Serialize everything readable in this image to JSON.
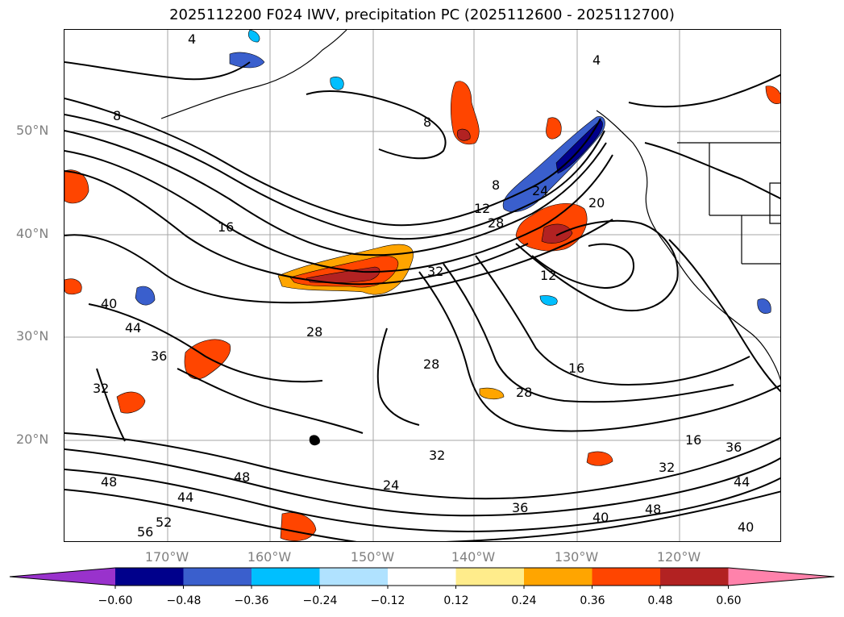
{
  "title": "2025112200 F024 IWV, precipitation PC (2025112600 - 2025112700)",
  "lat_labels": [
    {
      "text": "50°N",
      "lat": 50
    },
    {
      "text": "40°N",
      "lat": 40
    },
    {
      "text": "30°N",
      "lat": 30
    },
    {
      "text": "20°N",
      "lat": 20
    }
  ],
  "lon_labels": [
    {
      "text": "170°W",
      "lon": -170
    },
    {
      "text": "160°W",
      "lon": -160
    },
    {
      "text": "150°W",
      "lon": -150
    },
    {
      "text": "140°W",
      "lon": -140
    },
    {
      "text": "130°W",
      "lon": -130
    },
    {
      "text": "120°W",
      "lon": -120
    }
  ],
  "colorbar": {
    "ticks": [
      "−0.60",
      "−0.48",
      "−0.36",
      "−0.24",
      "−0.12",
      "0.12",
      "0.24",
      "0.36",
      "0.48",
      "0.60"
    ],
    "colors": [
      "#9932cc",
      "#00008b",
      "#3a5fcd",
      "#00bfff",
      "#b0e2ff",
      "#ffffff",
      "#ffec8b",
      "#ffa500",
      "#ff4500",
      "#b22222",
      "#ff82ab"
    ]
  },
  "contour_labels": [
    "4",
    "4",
    "8",
    "8",
    "8",
    "12",
    "12",
    "16",
    "16",
    "16",
    "20",
    "24",
    "24",
    "28",
    "28",
    "28",
    "28",
    "32",
    "32",
    "32",
    "32",
    "36",
    "36",
    "36",
    "40",
    "40",
    "40",
    "44",
    "44",
    "44",
    "48",
    "48",
    "48",
    "52",
    "56"
  ],
  "colors": {
    "contour": "#000000",
    "grid": "#808080",
    "coast": "#000000"
  }
}
